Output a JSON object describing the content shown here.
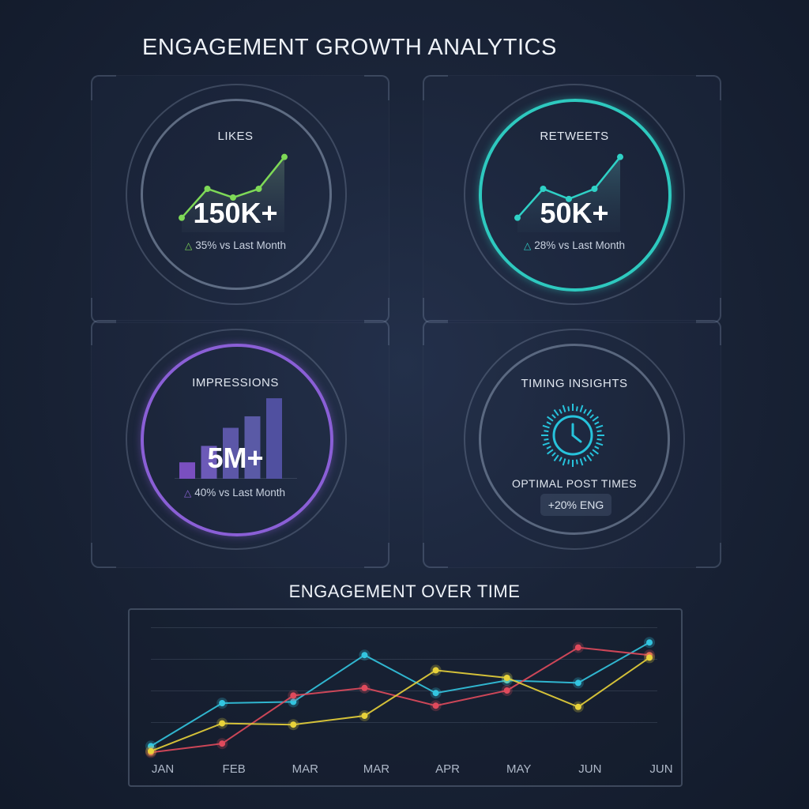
{
  "header": {
    "title": "ENGAGEMENT GROWTH ANALYTICS"
  },
  "cards": {
    "likes": {
      "label": "LIKES",
      "value": "150K+",
      "delta": "35% vs Last Month",
      "color": "#7ed957",
      "sparkline": [
        1,
        3,
        2.4,
        3,
        5.2
      ]
    },
    "retweets": {
      "label": "RETWEETS",
      "value": "50K+",
      "delta": "28% vs Last Month",
      "color": "#2fd1c6",
      "sparkline": [
        1,
        3,
        2.3,
        3,
        5.2
      ]
    },
    "impressions": {
      "label": "IMPRESSIONS",
      "value": "5M+",
      "delta": "40% vs Last Month",
      "color": "#8c63d9",
      "bars": [
        1,
        2,
        3.1,
        3.8,
        4.9
      ]
    },
    "timing": {
      "label": "TIMING INSIGHTS",
      "caption": "OPTIMAL POST TIMES",
      "badge": "+20% ENG",
      "icon": "clock-icon",
      "color": "#27c3dc"
    }
  },
  "chart_data": {
    "type": "line",
    "title": "ENGAGEMENT OVER TIME",
    "categories": [
      "JAN",
      "FEB",
      "MAR",
      "MAR",
      "APR",
      "MAY",
      "JUN",
      "JUN"
    ],
    "ylim": [
      0,
      5
    ],
    "grid": true,
    "series": [
      {
        "color": "#33c5e0",
        "values": [
          0.3,
          2.0,
          2.05,
          3.9,
          2.4,
          2.9,
          2.8,
          4.4
        ]
      },
      {
        "color": "#e04a5c",
        "values": [
          0.05,
          0.4,
          2.3,
          2.6,
          1.9,
          2.5,
          4.2,
          3.9
        ]
      },
      {
        "color": "#e8d23a",
        "values": [
          0.1,
          1.2,
          1.15,
          1.5,
          3.3,
          3.0,
          1.85,
          3.8
        ]
      }
    ]
  }
}
